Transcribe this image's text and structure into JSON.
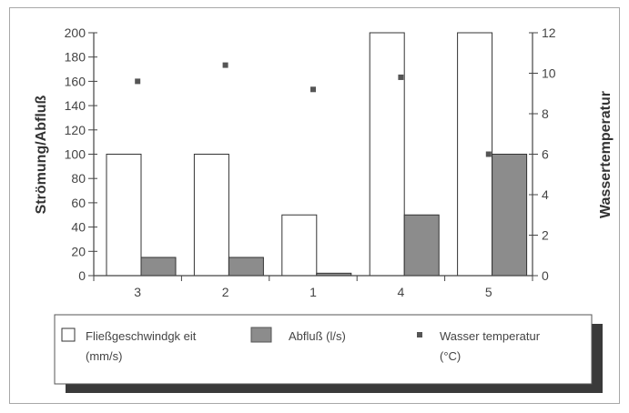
{
  "chart_data": {
    "type": "bar",
    "categories": [
      "3",
      "2",
      "1",
      "4",
      "5"
    ],
    "series": [
      {
        "name": "Fließgeschwindgk eit (mm/s)",
        "type": "bar",
        "axis": "left",
        "color": "#ffffff",
        "values": [
          100,
          100,
          50,
          200,
          200
        ]
      },
      {
        "name": "Abfluß (l/s)",
        "type": "bar",
        "axis": "left",
        "color": "#8c8c8c",
        "values": [
          15,
          15,
          2,
          50,
          100
        ]
      },
      {
        "name": "Wasser temperatur (°C)",
        "type": "scatter",
        "axis": "right",
        "color": "#555555",
        "values": [
          9.6,
          10.4,
          9.2,
          9.8,
          6.0
        ]
      }
    ],
    "ylabel": "Strömung/Abfluß",
    "y2label": "Wassertemperatur",
    "ylim": [
      0,
      200
    ],
    "y2lim": [
      0,
      12
    ],
    "yticks": [
      0,
      20,
      40,
      60,
      80,
      100,
      120,
      140,
      160,
      180,
      200
    ],
    "y2ticks": [
      0,
      2,
      4,
      6,
      8,
      10,
      12
    ],
    "legend": {
      "placement": "bottom",
      "items": [
        {
          "lines": [
            "Fließgeschwindgk eit",
            "(mm/s)"
          ],
          "symbol": "open-square"
        },
        {
          "lines": [
            "Abfluß (l/s)"
          ],
          "symbol": "filled-square"
        },
        {
          "lines": [
            "Wasser temperatur",
            "(°C)"
          ],
          "symbol": "small-square"
        }
      ]
    }
  }
}
